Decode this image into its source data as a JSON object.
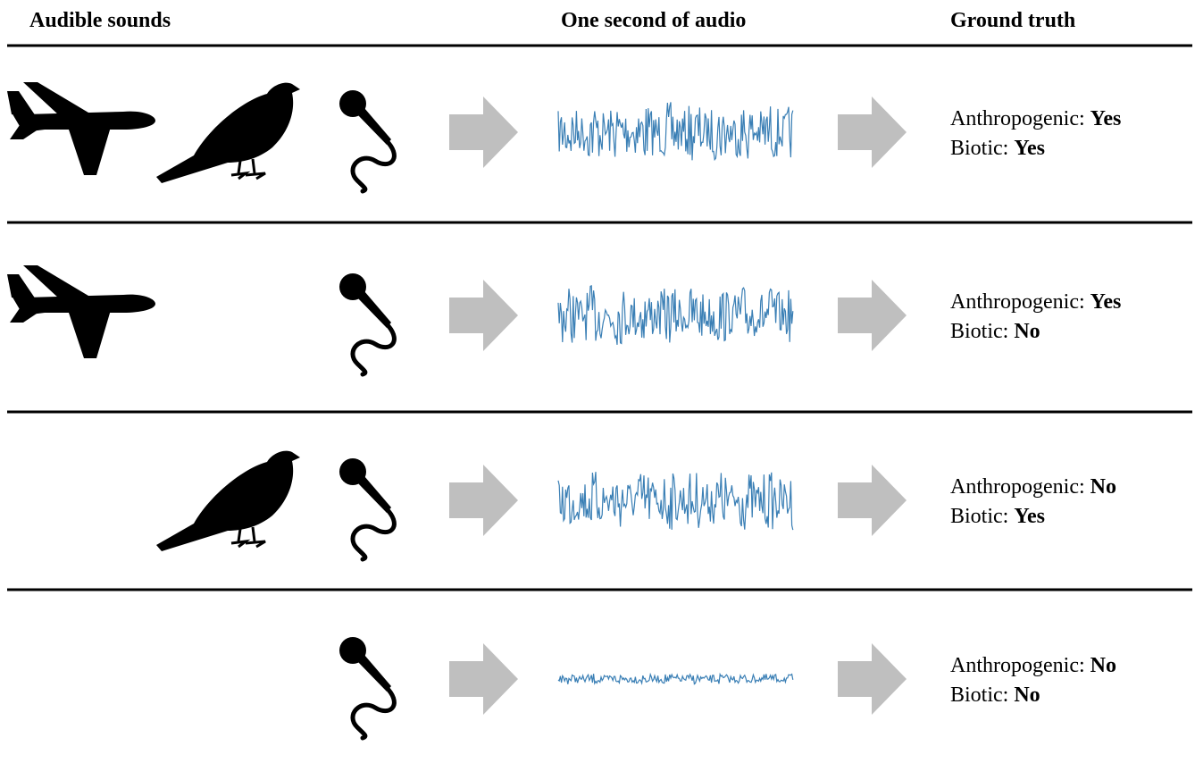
{
  "header": {
    "columns": [
      "Audible sounds",
      "One second of audio",
      "Ground truth"
    ]
  },
  "rows": [
    {
      "anthropogenic_label": "Anthropogenic:",
      "anthropogenic": "Yes",
      "biotic_label": "Biotic:",
      "biotic": "Yes"
    },
    {
      "anthropogenic_label": "Anthropogenic:",
      "anthropogenic": "Yes",
      "biotic_label": "Biotic:",
      "biotic": "No"
    },
    {
      "anthropogenic_label": "Anthropogenic:",
      "anthropogenic": "No",
      "biotic_label": "Biotic:",
      "biotic": "Yes"
    },
    {
      "anthropogenic_label": "Anthropogenic:",
      "anthropogenic": "No",
      "biotic_label": "Biotic:",
      "biotic": "No"
    }
  ]
}
